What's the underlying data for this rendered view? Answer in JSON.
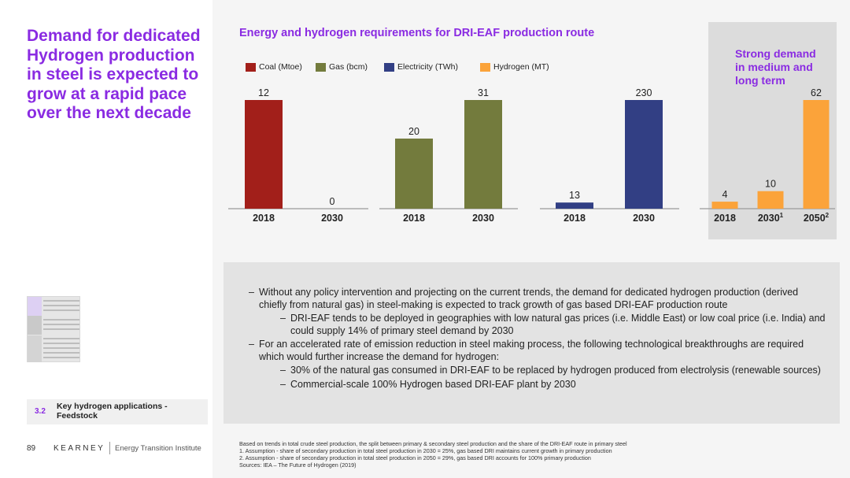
{
  "headline": "Demand for dedicated Hydrogen production in steel is expected to grow at a rapid pace over the next decade",
  "section": {
    "number": "3.2",
    "label": "Key hydrogen applications - Feedstock"
  },
  "footer": {
    "page": "89",
    "brand": "KEARNEY",
    "institute": "Energy Transition Institute"
  },
  "chart_title": "Energy and hydrogen requirements for DRI-EAF production route",
  "callout": "Strong demand in medium and long term",
  "colors": {
    "coal": "#a21f1a",
    "gas": "#737b3d",
    "electricity": "#323f84",
    "hydrogen": "#fba33a",
    "accent": "#8a2be2"
  },
  "chart_data": {
    "type": "bar",
    "legend": [
      {
        "name": "Coal (Mtoe)",
        "color": "#a21f1a"
      },
      {
        "name": "Gas (bcm)",
        "color": "#737b3d"
      },
      {
        "name": "Electricity (TWh)",
        "color": "#323f84"
      },
      {
        "name": "Hydrogen (MT)",
        "color": "#fba33a"
      }
    ],
    "groups": [
      {
        "series": "Coal (Mtoe)",
        "color": "#a21f1a",
        "categories": [
          "2018",
          "2030"
        ],
        "values": [
          12,
          0
        ],
        "ylim": [
          0,
          12
        ]
      },
      {
        "series": "Gas (bcm)",
        "color": "#737b3d",
        "categories": [
          "2018",
          "2030"
        ],
        "values": [
          20,
          31
        ],
        "ylim": [
          0,
          31
        ]
      },
      {
        "series": "Electricity (TWh)",
        "color": "#323f84",
        "categories": [
          "2018",
          "2030"
        ],
        "values": [
          13,
          230
        ],
        "ylim": [
          0,
          230
        ]
      },
      {
        "series": "Hydrogen (MT)",
        "color": "#fba33a",
        "categories": [
          "2018",
          "2030",
          "2050"
        ],
        "superscripts": [
          "",
          "1",
          "2"
        ],
        "values": [
          4,
          10,
          62
        ],
        "ylim": [
          0,
          62
        ]
      }
    ]
  },
  "bullets": [
    {
      "level": 1,
      "dash": "–",
      "text": "Without any policy intervention and projecting on the current trends, the demand for dedicated hydrogen production (derived chiefly from natural gas) in steel-making is expected to track growth of gas based DRI-EAF production route"
    },
    {
      "level": 2,
      "dash": "–",
      "text": "DRI-EAF tends to be deployed in geographies with low natural gas prices (i.e. Middle East) or low coal price (i.e. India) and could supply 14% of primary steel demand by 2030"
    },
    {
      "level": 1,
      "dash": "–",
      "text": "For an accelerated rate of emission reduction in steel making process, the following technological breakthroughs are required which would further increase the demand for hydrogen:"
    },
    {
      "level": 2,
      "dash": "–",
      "text": "30% of the natural gas consumed in DRI-EAF to be replaced by hydrogen produced from electrolysis (renewable sources)"
    },
    {
      "level": 2,
      "dash": "–",
      "text": "Commercial-scale 100% Hydrogen based DRI-EAF plant by 2030"
    }
  ],
  "footnotes": [
    "Based on trends in total crude steel production, the split between primary & secondary steel production and the share of the DRI-EAF route in primary steel",
    "1. Assumption - share of secondary production in total steel production in 2030 = 25%, gas based DRI maintains current growth in primary production",
    "2. Assumption - share of secondary production in total steel production in 2050 = 29%, gas based DRI accounts for 100% primary production",
    "Sources: IEA – The Future of Hydrogen (2019)"
  ]
}
